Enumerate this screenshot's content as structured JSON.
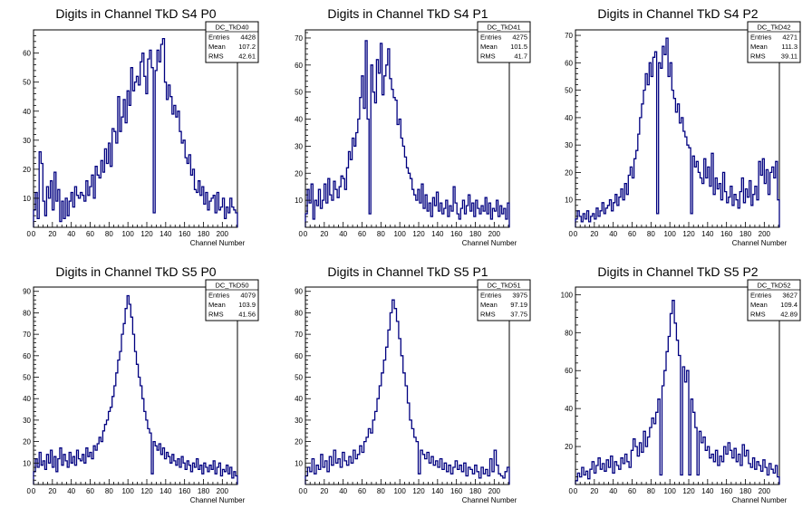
{
  "colors": {
    "histogram": "#000080",
    "axes": "#000000",
    "background": "#ffffff"
  },
  "stat_labels": {
    "entries": "Entries",
    "mean": "Mean",
    "rms": "RMS"
  },
  "chart_data": [
    {
      "type": "histogram",
      "title": "Digits in Channel TkD S4 P0",
      "xlabel": "Channel Number",
      "ylabel": "",
      "xlim": [
        0,
        216
      ],
      "ylim": [
        0,
        68
      ],
      "xticks": [
        0,
        20,
        40,
        60,
        80,
        100,
        120,
        140,
        160,
        180,
        200
      ],
      "yticks": [
        10,
        20,
        30,
        40,
        50,
        60
      ],
      "stats": {
        "name": "DC_TkD40",
        "entries": "4428",
        "mean": "107.2",
        "rms": "42.61"
      },
      "values": [
        6,
        12,
        3,
        26,
        22,
        9,
        4,
        14,
        10,
        16,
        6,
        19,
        9,
        13,
        2,
        9,
        3,
        10,
        4,
        9,
        12,
        7,
        14,
        11,
        10,
        12,
        11,
        9,
        16,
        11,
        14,
        18,
        10,
        21,
        18,
        17,
        23,
        19,
        27,
        22,
        29,
        21,
        34,
        33,
        29,
        45,
        33,
        38,
        44,
        36,
        47,
        42,
        55,
        47,
        50,
        52,
        49,
        57,
        60,
        52,
        46,
        58,
        61,
        55,
        5,
        54,
        61,
        57,
        63,
        65,
        50,
        44,
        49,
        45,
        39,
        42,
        38,
        40,
        33,
        29,
        30,
        24,
        22,
        25,
        18,
        20,
        13,
        12,
        16,
        11,
        14,
        8,
        12,
        6,
        9,
        10,
        11,
        5,
        12,
        6,
        7,
        10,
        3,
        7,
        5,
        10,
        7,
        6,
        5
      ]
    },
    {
      "type": "histogram",
      "title": "Digits in Channel TkD S4 P1",
      "xlabel": "Channel Number",
      "ylabel": "",
      "xlim": [
        0,
        216
      ],
      "ylim": [
        0,
        73
      ],
      "xticks": [
        0,
        20,
        40,
        60,
        80,
        100,
        120,
        140,
        160,
        180,
        200
      ],
      "yticks": [
        10,
        20,
        30,
        40,
        50,
        60,
        70
      ],
      "stats": {
        "name": "DC_TkD41",
        "entries": "4275",
        "mean": "101.5",
        "rms": "41.7"
      },
      "values": [
        5,
        14,
        9,
        16,
        3,
        10,
        8,
        14,
        7,
        10,
        16,
        9,
        18,
        12,
        10,
        17,
        14,
        11,
        15,
        19,
        18,
        14,
        22,
        28,
        25,
        33,
        30,
        35,
        40,
        48,
        56,
        44,
        69,
        40,
        5,
        60,
        50,
        46,
        62,
        57,
        68,
        49,
        56,
        60,
        66,
        55,
        51,
        48,
        47,
        38,
        40,
        33,
        30,
        26,
        22,
        20,
        18,
        14,
        12,
        10,
        14,
        9,
        16,
        7,
        12,
        6,
        9,
        4,
        11,
        8,
        13,
        6,
        9,
        5,
        7,
        10,
        4,
        8,
        6,
        15,
        9,
        5,
        3,
        7,
        10,
        5,
        8,
        12,
        6,
        9,
        4,
        10,
        7,
        5,
        8,
        6,
        11,
        5,
        9,
        3,
        7,
        6,
        10,
        4,
        8,
        5,
        7,
        3,
        9
      ]
    },
    {
      "type": "histogram",
      "title": "Digits in Channel TkD S4 P2",
      "xlabel": "Channel Number",
      "ylabel": "",
      "xlim": [
        0,
        216
      ],
      "ylim": [
        0,
        72
      ],
      "xticks": [
        0,
        20,
        40,
        60,
        80,
        100,
        120,
        140,
        160,
        180,
        200
      ],
      "yticks": [
        10,
        20,
        30,
        40,
        50,
        60,
        70
      ],
      "stats": {
        "name": "DC_TkD42",
        "entries": "4271",
        "mean": "111.3",
        "rms": "39.11"
      },
      "values": [
        3,
        6,
        4,
        2,
        5,
        3,
        6,
        2,
        4,
        5,
        3,
        7,
        4,
        6,
        9,
        5,
        7,
        8,
        10,
        6,
        9,
        12,
        8,
        11,
        14,
        10,
        16,
        12,
        19,
        22,
        18,
        25,
        28,
        34,
        40,
        45,
        50,
        56,
        52,
        60,
        55,
        62,
        64,
        5,
        60,
        58,
        66,
        63,
        69,
        55,
        60,
        50,
        47,
        42,
        45,
        38,
        40,
        35,
        33,
        30,
        29,
        5,
        26,
        22,
        24,
        20,
        18,
        16,
        25,
        18,
        22,
        15,
        27,
        12,
        18,
        14,
        16,
        10,
        20,
        13,
        9,
        11,
        15,
        8,
        12,
        10,
        7,
        13,
        18,
        9,
        14,
        11,
        17,
        8,
        12,
        15,
        10,
        24,
        19,
        25,
        16,
        21,
        12,
        20,
        22,
        18,
        24,
        10
      ]
    },
    {
      "type": "histogram",
      "title": "Digits in Channel TkD S5 P0",
      "xlabel": "Channel Number",
      "ylabel": "",
      "xlim": [
        0,
        216
      ],
      "ylim": [
        0,
        92
      ],
      "xticks": [
        0,
        20,
        40,
        60,
        80,
        100,
        120,
        140,
        160,
        180,
        200
      ],
      "yticks": [
        10,
        20,
        30,
        40,
        50,
        60,
        70,
        80,
        90
      ],
      "stats": {
        "name": "DC_TkD50",
        "entries": "4079",
        "mean": "103.9",
        "rms": "41.56"
      },
      "values": [
        6,
        12,
        8,
        15,
        9,
        11,
        7,
        14,
        10,
        16,
        8,
        13,
        6,
        12,
        17,
        9,
        14,
        11,
        8,
        15,
        10,
        13,
        9,
        16,
        12,
        11,
        14,
        10,
        17,
        13,
        15,
        12,
        18,
        16,
        19,
        22,
        20,
        25,
        28,
        30,
        34,
        36,
        41,
        46,
        52,
        58,
        62,
        70,
        75,
        82,
        88,
        84,
        78,
        70,
        62,
        56,
        50,
        46,
        40,
        34,
        30,
        26,
        24,
        5,
        20,
        18,
        16,
        19,
        14,
        17,
        12,
        15,
        13,
        10,
        14,
        11,
        9,
        12,
        8,
        13,
        10,
        7,
        11,
        9,
        6,
        10,
        8,
        12,
        7,
        9,
        5,
        10,
        8,
        6,
        9,
        7,
        11,
        5,
        8,
        10,
        4,
        7,
        6,
        9,
        5,
        8,
        3,
        6,
        4
      ]
    },
    {
      "type": "histogram",
      "title": "Digits in Channel TkD S5 P1",
      "xlabel": "Channel Number",
      "ylabel": "",
      "xlim": [
        0,
        216
      ],
      "ylim": [
        0,
        92
      ],
      "xticks": [
        0,
        20,
        40,
        60,
        80,
        100,
        120,
        140,
        160,
        180,
        200
      ],
      "yticks": [
        10,
        20,
        30,
        40,
        50,
        60,
        70,
        80,
        90
      ],
      "stats": {
        "name": "DC_TkD51",
        "entries": "3975",
        "mean": "97.19",
        "rms": "37.75"
      },
      "values": [
        4,
        8,
        6,
        12,
        5,
        9,
        7,
        14,
        8,
        11,
        6,
        13,
        9,
        16,
        10,
        12,
        8,
        15,
        11,
        9,
        13,
        10,
        16,
        12,
        14,
        18,
        15,
        20,
        22,
        26,
        24,
        30,
        34,
        40,
        46,
        52,
        58,
        64,
        72,
        80,
        86,
        82,
        76,
        68,
        60,
        52,
        46,
        38,
        30,
        26,
        22,
        20,
        5,
        16,
        14,
        12,
        15,
        10,
        13,
        9,
        11,
        8,
        12,
        7,
        10,
        6,
        9,
        5,
        8,
        11,
        7,
        9,
        6,
        10,
        4,
        8,
        7,
        5,
        9,
        6,
        3,
        8,
        5,
        7,
        4,
        12,
        6,
        16,
        9,
        5,
        4,
        3,
        6,
        8
      ]
    },
    {
      "type": "histogram",
      "title": "Digits in Channel TkD S5 P2",
      "xlabel": "Channel Number",
      "ylabel": "",
      "xlim": [
        0,
        216
      ],
      "ylim": [
        0,
        104
      ],
      "xticks": [
        0,
        20,
        40,
        60,
        80,
        100,
        120,
        140,
        160,
        180,
        200
      ],
      "yticks": [
        20,
        40,
        60,
        80,
        100
      ],
      "stats": {
        "name": "DC_TkD52",
        "entries": "3627",
        "mean": "109.4",
        "rms": "42.89"
      },
      "values": [
        2,
        6,
        4,
        9,
        5,
        7,
        3,
        8,
        12,
        6,
        10,
        14,
        8,
        11,
        7,
        13,
        9,
        15,
        6,
        12,
        10,
        8,
        14,
        11,
        16,
        12,
        9,
        18,
        24,
        20,
        15,
        22,
        17,
        28,
        20,
        25,
        30,
        35,
        32,
        38,
        45,
        5,
        52,
        60,
        70,
        78,
        90,
        97,
        85,
        76,
        68,
        5,
        62,
        54,
        60,
        5,
        45,
        38,
        30,
        5,
        28,
        22,
        25,
        18,
        20,
        14,
        16,
        12,
        18,
        10,
        15,
        12,
        20,
        16,
        22,
        18,
        14,
        19,
        12,
        16,
        10,
        21,
        15,
        18,
        11,
        9,
        14,
        8,
        12,
        10,
        7,
        13,
        9,
        5,
        11,
        8,
        6,
        10,
        4
      ]
    }
  ]
}
